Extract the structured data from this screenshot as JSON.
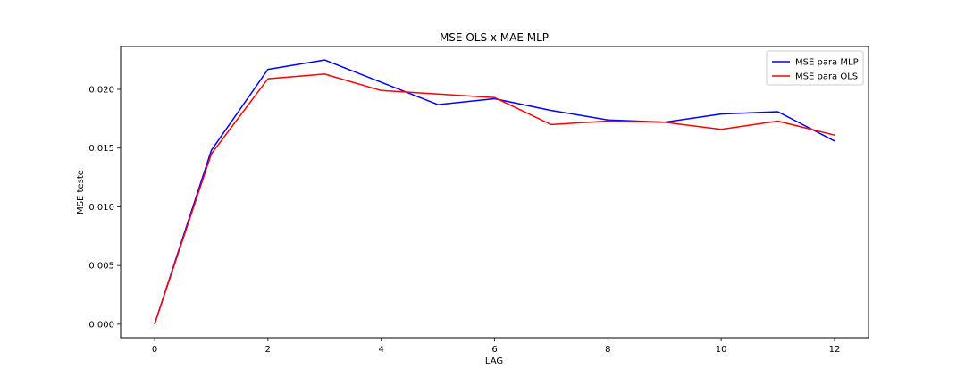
{
  "chart_data": {
    "type": "line",
    "title": "MSE OLS x MAE MLP",
    "xlabel": "LAG",
    "ylabel": "MSE teste",
    "x": [
      0,
      1,
      2,
      3,
      4,
      5,
      6,
      7,
      8,
      9,
      10,
      11,
      12
    ],
    "xlim": [
      -0.6,
      12.6
    ],
    "ylim": [
      -0.00115,
      0.02365
    ],
    "xticks": [
      "0",
      "2",
      "4",
      "6",
      "8",
      "10",
      "12"
    ],
    "yticks": [
      "0.000",
      "0.005",
      "0.010",
      "0.015",
      "0.020"
    ],
    "grid": false,
    "legend_position": "top-right",
    "series": [
      {
        "name": "MSE para MLP",
        "color": "#0000ff",
        "values": [
          0.0,
          0.0148,
          0.0217,
          0.0225,
          0.0206,
          0.0187,
          0.0192,
          0.0182,
          0.0174,
          0.0172,
          0.0179,
          0.0181,
          0.0156
        ]
      },
      {
        "name": "MSE para OLS",
        "color": "#ff0000",
        "values": [
          0.0,
          0.0145,
          0.0209,
          0.0213,
          0.0199,
          0.0196,
          0.0193,
          0.017,
          0.0173,
          0.0172,
          0.0166,
          0.0173,
          0.0161
        ]
      }
    ]
  }
}
